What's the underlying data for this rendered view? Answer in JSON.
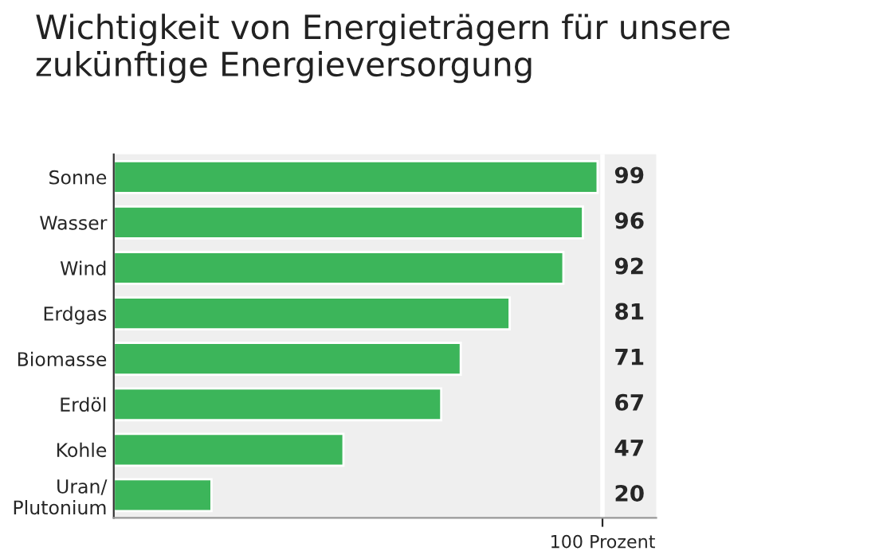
{
  "chart_data": {
    "type": "bar",
    "orientation": "horizontal",
    "title": "Wichtigkeit von Energieträgern für unsere\nzukünftige Energieversorgung",
    "categories": [
      "Sonne",
      "Wasser",
      "Wind",
      "Erdgas",
      "Biomasse",
      "Erdöl",
      "Kohle",
      "Uran/\nPlutonium"
    ],
    "values": [
      99,
      96,
      92,
      81,
      71,
      67,
      47,
      20
    ],
    "color": "#3cb55a",
    "xlim": [
      0,
      111
    ],
    "xticks": [
      {
        "value": 100,
        "label": "100 Prozent"
      }
    ],
    "data_labels": true,
    "grid": "x",
    "legend": false
  }
}
